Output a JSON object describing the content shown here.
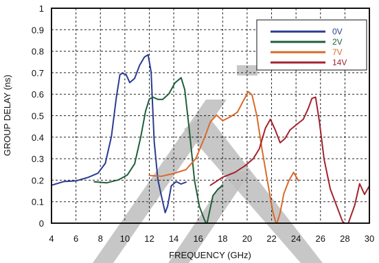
{
  "chart_data": {
    "type": "line",
    "xlabel": "FREQUENCY (GHz)",
    "ylabel": "GROUP DELAY (ns)",
    "xlim": [
      4,
      30
    ],
    "ylim": [
      0,
      1
    ],
    "x_ticks": [
      4,
      6,
      8,
      10,
      12,
      14,
      16,
      18,
      20,
      22,
      24,
      26,
      28,
      30
    ],
    "y_ticks": [
      0,
      0.1,
      0.2,
      0.3,
      0.4,
      0.5,
      0.6,
      0.7,
      0.8,
      0.9,
      1
    ],
    "y_tick_labels": [
      "0",
      "0.1",
      "0.2",
      "0.3",
      "0.4",
      "0.5",
      "0.6",
      "0.7",
      "0.8",
      "0.9",
      "1"
    ],
    "grid": true,
    "legend_position": "top-right",
    "series": [
      {
        "name": "0V",
        "color": "#2b3a8f",
        "x": [
          4.0,
          5.0,
          6.0,
          7.0,
          7.8,
          8.4,
          8.9,
          9.3,
          9.6,
          9.8,
          10.1,
          10.4,
          10.8,
          11.2,
          11.6,
          11.9,
          12.15,
          12.4,
          12.7,
          13.0,
          13.3,
          13.5,
          13.8,
          14.2,
          14.6,
          15.0
        ],
        "y": [
          0.18,
          0.19,
          0.2,
          0.21,
          0.23,
          0.28,
          0.4,
          0.58,
          0.69,
          0.7,
          0.69,
          0.65,
          0.67,
          0.73,
          0.77,
          0.78,
          0.7,
          0.38,
          0.2,
          0.12,
          0.05,
          0.08,
          0.17,
          0.19,
          0.18,
          0.19
        ]
      },
      {
        "name": "2V",
        "color": "#1e5e3a",
        "x": [
          7.5,
          8.5,
          9.5,
          10.2,
          10.8,
          11.3,
          11.7,
          12.0,
          12.3,
          12.7,
          13.1,
          13.6,
          14.1,
          14.6,
          14.9,
          15.3,
          15.7,
          16.1,
          16.5,
          16.7,
          16.9,
          17.2,
          17.6,
          18.0
        ],
        "y": [
          0.19,
          0.19,
          0.2,
          0.22,
          0.28,
          0.4,
          0.52,
          0.58,
          0.59,
          0.58,
          0.58,
          0.6,
          0.65,
          0.68,
          0.62,
          0.42,
          0.2,
          0.08,
          0.02,
          -0.01,
          0.05,
          0.13,
          0.16,
          0.18
        ]
      },
      {
        "name": "7V",
        "color": "#d86a2a",
        "x": [
          12.0,
          13.0,
          14.0,
          15.0,
          15.8,
          16.5,
          17.0,
          17.5,
          18.0,
          18.6,
          19.2,
          19.7,
          20.1,
          20.4,
          20.8,
          21.2,
          21.7,
          22.1,
          22.4,
          22.7,
          23.0,
          23.4,
          23.8,
          24.2
        ],
        "y": [
          0.22,
          0.22,
          0.23,
          0.25,
          0.3,
          0.4,
          0.47,
          0.5,
          0.48,
          0.49,
          0.52,
          0.57,
          0.61,
          0.6,
          0.5,
          0.35,
          0.18,
          0.05,
          -0.01,
          0.05,
          0.14,
          0.2,
          0.24,
          0.2
        ]
      },
      {
        "name": "14V",
        "color": "#a3222e",
        "x": [
          17.0,
          18.0,
          19.0,
          19.8,
          20.5,
          21.0,
          21.5,
          21.9,
          22.3,
          22.7,
          23.1,
          23.5,
          24.0,
          24.6,
          25.0,
          25.3,
          25.6,
          25.9,
          26.3,
          26.8,
          27.3,
          27.8,
          28.2,
          28.8,
          29.2,
          29.6,
          30.0
        ],
        "y": [
          0.18,
          0.21,
          0.24,
          0.27,
          0.3,
          0.35,
          0.44,
          0.48,
          0.43,
          0.37,
          0.39,
          0.43,
          0.46,
          0.48,
          0.53,
          0.58,
          0.59,
          0.48,
          0.3,
          0.16,
          0.08,
          0.01,
          -0.01,
          0.08,
          0.18,
          0.13,
          0.17
        ]
      }
    ]
  }
}
